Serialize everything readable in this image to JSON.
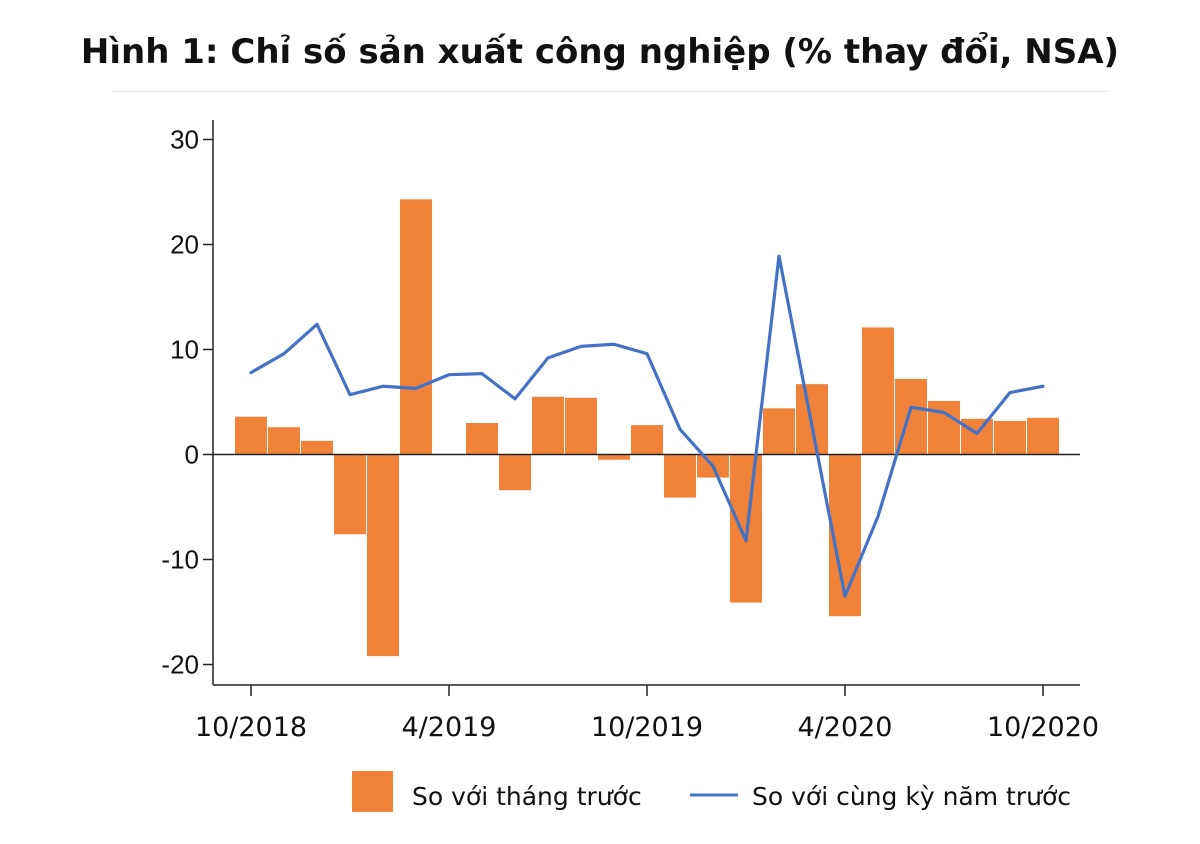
{
  "chart_data": {
    "type": "bar+line",
    "title": "Hình 1: Chỉ số sản xuất công nghiệp (% thay đổi, NSA)",
    "categories": [
      "10/2018",
      "11/2018",
      "12/2018",
      "1/2019",
      "2/2019",
      "3/2019",
      "4/2019",
      "5/2019",
      "6/2019",
      "7/2019",
      "8/2019",
      "9/2019",
      "10/2019",
      "11/2019",
      "12/2019",
      "1/2020",
      "2/2020",
      "3/2020",
      "4/2020",
      "5/2020",
      "6/2020",
      "7/2020",
      "8/2020",
      "9/2020",
      "10/2020"
    ],
    "x_ticks": [
      "10/2018",
      "4/2019",
      "10/2019",
      "4/2020",
      "10/2020"
    ],
    "y_ticks": [
      30,
      20,
      10,
      0,
      -10,
      -20
    ],
    "ylim": [
      -22,
      30.5
    ],
    "series": [
      {
        "name": "So với tháng trước",
        "kind": "bar",
        "color": "#f0823a",
        "values": [
          3.6,
          2.6,
          1.3,
          -7.6,
          -19.2,
          24.3,
          0.0,
          3.0,
          -3.4,
          5.5,
          5.4,
          -0.5,
          2.8,
          -4.1,
          -2.2,
          -14.1,
          4.4,
          6.7,
          -15.4,
          12.1,
          7.2,
          5.1,
          3.4,
          3.2,
          3.5
        ]
      },
      {
        "name": "So với cùng kỳ năm trước",
        "kind": "line",
        "color": "#4472c4",
        "values": [
          7.8,
          9.6,
          12.4,
          5.7,
          6.5,
          6.3,
          7.6,
          7.7,
          5.3,
          9.2,
          10.3,
          10.5,
          9.6,
          2.4,
          -1.1,
          -8.2,
          18.9,
          2.7,
          -13.5,
          -5.9,
          4.5,
          4.0,
          2.0,
          5.9,
          6.5
        ]
      }
    ],
    "legend": [
      "So với tháng trước",
      "So với cùng kỳ năm trước"
    ]
  }
}
